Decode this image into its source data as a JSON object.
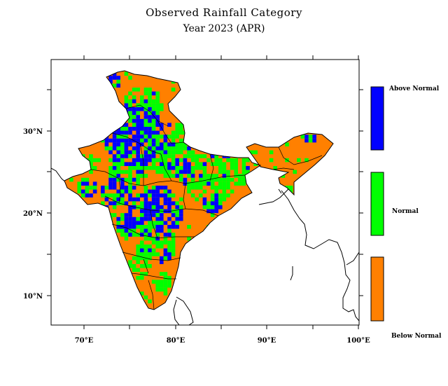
{
  "title": "Observed Rainfall Category",
  "subtitle": "Year 2023 (APR)",
  "x_ticks": [
    "70°E",
    "80°E",
    "90°E",
    "100°E"
  ],
  "y_ticks": [
    "30°N",
    "20°N",
    "10°N"
  ],
  "legend": [
    {
      "label": "Above Normal",
      "color": "#0000ff"
    },
    {
      "label": "Normal",
      "color": "#00ff00"
    },
    {
      "label": "Below Normal",
      "color": "#ff8000"
    }
  ],
  "map_extent": {
    "lon": [
      66.5,
      100
    ],
    "lat": [
      6.5,
      38.5
    ]
  }
}
